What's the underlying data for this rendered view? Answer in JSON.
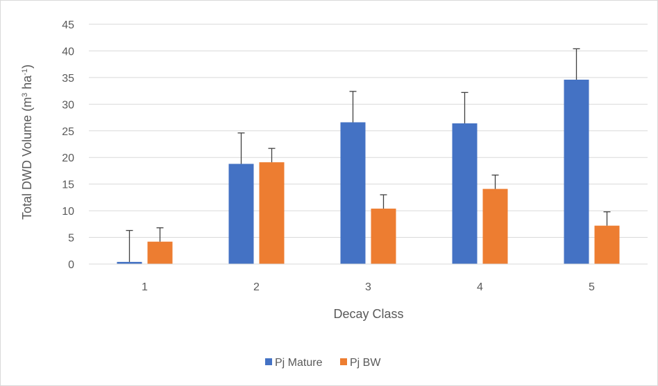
{
  "chart_data": {
    "type": "bar",
    "categories": [
      "1",
      "2",
      "3",
      "4",
      "5"
    ],
    "series": [
      {
        "name": "Pj Mature",
        "color": "#4472c4",
        "values": [
          0.4,
          18.8,
          26.6,
          26.4,
          34.6
        ],
        "error": [
          5.9,
          5.8,
          5.8,
          5.8,
          5.8
        ]
      },
      {
        "name": "Pj BW",
        "color": "#ed7d31",
        "values": [
          4.2,
          19.1,
          10.4,
          14.1,
          7.2
        ],
        "error": [
          2.6,
          2.6,
          2.6,
          2.6,
          2.6
        ]
      }
    ],
    "xlabel": "Decay Class",
    "ylabel_main": "Total DWD Volume (m",
    "ylabel_sup1": "3",
    "ylabel_mid": " ha",
    "ylabel_sup2": "-1",
    "ylabel_end": ")",
    "ylim": [
      0,
      45
    ],
    "yticks": [
      0,
      5,
      10,
      15,
      20,
      25,
      30,
      35,
      40,
      45
    ],
    "grid": true,
    "legend_position": "bottom"
  }
}
